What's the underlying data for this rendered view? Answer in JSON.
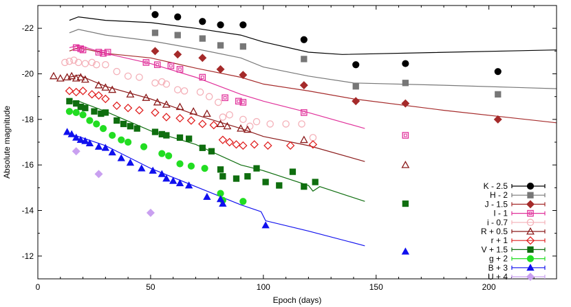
{
  "chart_data": {
    "type": "scatter",
    "xlabel": "Epoch (days)",
    "ylabel": "Absolute magnitude",
    "xlim": [
      0,
      230
    ],
    "ylim": [
      -11,
      -23
    ],
    "y_inverted": true,
    "grid": false,
    "legend_position": "bottom-right",
    "xticks": [
      "0",
      "50",
      "100",
      "150",
      "200"
    ],
    "yticks": [
      "-12",
      "-14",
      "-16",
      "-18",
      "-20",
      "-22"
    ],
    "series": [
      {
        "name": "K - 2.5",
        "color": "#000000",
        "marker": "filled-circle",
        "points": [
          [
            52,
            -22.6
          ],
          [
            62,
            -22.5
          ],
          [
            73,
            -22.3
          ],
          [
            81,
            -22.15
          ],
          [
            91,
            -22.15
          ],
          [
            118,
            -21.5
          ],
          [
            141,
            -20.4
          ],
          [
            163,
            -20.45
          ],
          [
            204,
            -20.1
          ]
        ],
        "model": [
          [
            14,
            -22.35
          ],
          [
            18,
            -22.5
          ],
          [
            30,
            -22.35
          ],
          [
            50,
            -22.25
          ],
          [
            70,
            -22.0
          ],
          [
            90,
            -21.7
          ],
          [
            100,
            -21.4
          ],
          [
            120,
            -20.95
          ],
          [
            135,
            -20.85
          ],
          [
            230,
            -21.05
          ]
        ]
      },
      {
        "name": "H - 2",
        "color": "#777777",
        "marker": "filled-square",
        "points": [
          [
            52,
            -21.8
          ],
          [
            62,
            -21.7
          ],
          [
            73,
            -21.55
          ],
          [
            81,
            -21.25
          ],
          [
            91,
            -21.2
          ],
          [
            118,
            -20.65
          ],
          [
            141,
            -19.45
          ],
          [
            163,
            -19.6
          ],
          [
            204,
            -19.1
          ]
        ],
        "model": [
          [
            14,
            -21.8
          ],
          [
            18,
            -21.95
          ],
          [
            30,
            -21.7
          ],
          [
            50,
            -21.45
          ],
          [
            70,
            -21.1
          ],
          [
            90,
            -20.7
          ],
          [
            100,
            -20.3
          ],
          [
            120,
            -19.9
          ],
          [
            140,
            -19.6
          ],
          [
            180,
            -19.5
          ],
          [
            230,
            -19.35
          ]
        ]
      },
      {
        "name": "J - 1.5",
        "color": "#a52a2a",
        "marker": "filled-diamond",
        "points": [
          [
            52,
            -21.0
          ],
          [
            62,
            -20.85
          ],
          [
            73,
            -20.7
          ],
          [
            81,
            -20.2
          ],
          [
            91,
            -19.95
          ],
          [
            118,
            -19.5
          ],
          [
            141,
            -18.8
          ],
          [
            163,
            -18.7
          ],
          [
            204,
            -18.0
          ]
        ],
        "model": [
          [
            14,
            -21.0
          ],
          [
            18,
            -21.15
          ],
          [
            30,
            -20.9
          ],
          [
            50,
            -20.7
          ],
          [
            70,
            -20.25
          ],
          [
            90,
            -19.85
          ],
          [
            100,
            -19.55
          ],
          [
            120,
            -19.25
          ],
          [
            140,
            -18.9
          ],
          [
            180,
            -18.4
          ],
          [
            230,
            -17.85
          ]
        ]
      },
      {
        "name": "I - 1",
        "color": "#e0309a",
        "marker": "open-square",
        "points": [
          [
            17,
            -21.15
          ],
          [
            19,
            -21.1
          ],
          [
            20,
            -21.05
          ],
          [
            27,
            -20.95
          ],
          [
            29,
            -20.9
          ],
          [
            31,
            -20.95
          ],
          [
            48,
            -20.5
          ],
          [
            53,
            -20.4
          ],
          [
            59,
            -20.35
          ],
          [
            63,
            -20.2
          ],
          [
            73,
            -19.85
          ],
          [
            83,
            -18.95
          ],
          [
            89,
            -18.8
          ],
          [
            91,
            -18.75
          ],
          [
            118,
            -18.3
          ],
          [
            163,
            -17.3
          ]
        ],
        "model": [
          [
            14,
            -21.15
          ],
          [
            18,
            -21.25
          ],
          [
            30,
            -20.9
          ],
          [
            50,
            -20.45
          ],
          [
            70,
            -19.85
          ],
          [
            90,
            -19.1
          ],
          [
            100,
            -18.8
          ],
          [
            120,
            -18.3
          ],
          [
            145,
            -17.6
          ]
        ]
      },
      {
        "name": "i - 0.7",
        "color": "#f4b0b8",
        "marker": "open-circle",
        "points": [
          [
            12,
            -20.5
          ],
          [
            14,
            -20.55
          ],
          [
            16,
            -20.6
          ],
          [
            18,
            -20.5
          ],
          [
            21,
            -20.45
          ],
          [
            24,
            -20.5
          ],
          [
            26,
            -20.4
          ],
          [
            30,
            -20.4
          ],
          [
            35,
            -20.1
          ],
          [
            40,
            -19.9
          ],
          [
            45,
            -19.85
          ],
          [
            52,
            -19.6
          ],
          [
            55,
            -19.65
          ],
          [
            57,
            -19.55
          ],
          [
            62,
            -19.3
          ],
          [
            65,
            -19.25
          ],
          [
            72,
            -19.2
          ],
          [
            76,
            -19.0
          ],
          [
            80,
            -18.75
          ],
          [
            82,
            -18.1
          ],
          [
            85,
            -18.2
          ],
          [
            91,
            -18.0
          ],
          [
            94,
            -17.7
          ],
          [
            97,
            -17.9
          ],
          [
            103,
            -17.8
          ],
          [
            110,
            -17.8
          ],
          [
            117,
            -17.8
          ],
          [
            122,
            -17.2
          ]
        ],
        "model": []
      },
      {
        "name": "R + 0.5",
        "color": "#8b1a1a",
        "marker": "open-triangle",
        "points": [
          [
            7,
            -19.9
          ],
          [
            10,
            -19.8
          ],
          [
            13,
            -19.85
          ],
          [
            15,
            -19.9
          ],
          [
            17,
            -19.8
          ],
          [
            19,
            -19.85
          ],
          [
            21,
            -19.75
          ],
          [
            27,
            -19.5
          ],
          [
            30,
            -19.4
          ],
          [
            33,
            -19.3
          ],
          [
            41,
            -19.1
          ],
          [
            48,
            -18.95
          ],
          [
            53,
            -18.75
          ],
          [
            57,
            -18.65
          ],
          [
            63,
            -18.55
          ],
          [
            69,
            -18.35
          ],
          [
            75,
            -18.25
          ],
          [
            81,
            -17.8
          ],
          [
            84,
            -17.7
          ],
          [
            90,
            -17.6
          ],
          [
            93,
            -17.55
          ],
          [
            118,
            -17.1
          ],
          [
            163,
            -16.0
          ]
        ],
        "model": [
          [
            14,
            -19.85
          ],
          [
            18,
            -19.95
          ],
          [
            30,
            -19.45
          ],
          [
            50,
            -18.9
          ],
          [
            70,
            -18.2
          ],
          [
            90,
            -17.6
          ],
          [
            100,
            -17.25
          ],
          [
            120,
            -16.85
          ],
          [
            145,
            -16.15
          ]
        ]
      },
      {
        "name": "r + 1",
        "color": "#e02020",
        "marker": "open-diamond",
        "points": [
          [
            14,
            -19.25
          ],
          [
            17,
            -19.2
          ],
          [
            20,
            -19.25
          ],
          [
            24,
            -19.1
          ],
          [
            27,
            -19.05
          ],
          [
            30,
            -18.9
          ],
          [
            35,
            -18.6
          ],
          [
            40,
            -18.5
          ],
          [
            45,
            -18.4
          ],
          [
            52,
            -18.3
          ],
          [
            57,
            -18.1
          ],
          [
            63,
            -18.05
          ],
          [
            68,
            -17.95
          ],
          [
            73,
            -17.8
          ],
          [
            78,
            -17.75
          ],
          [
            82,
            -17.1
          ],
          [
            85,
            -17.0
          ],
          [
            88,
            -16.9
          ],
          [
            91,
            -16.85
          ],
          [
            96,
            -16.9
          ],
          [
            102,
            -16.85
          ],
          [
            112,
            -16.85
          ],
          [
            122,
            -16.9
          ]
        ],
        "model": []
      },
      {
        "name": "V + 1.5",
        "color": "#0f6e0f",
        "marker": "filled-square",
        "points": [
          [
            14,
            -18.8
          ],
          [
            17,
            -18.7
          ],
          [
            19,
            -18.55
          ],
          [
            21,
            -18.5
          ],
          [
            25,
            -18.35
          ],
          [
            28,
            -18.25
          ],
          [
            30,
            -18.3
          ],
          [
            35,
            -17.95
          ],
          [
            38,
            -17.8
          ],
          [
            41,
            -17.7
          ],
          [
            44,
            -17.6
          ],
          [
            52,
            -17.45
          ],
          [
            55,
            -17.35
          ],
          [
            57,
            -17.3
          ],
          [
            63,
            -17.2
          ],
          [
            67,
            -17.15
          ],
          [
            73,
            -16.75
          ],
          [
            77,
            -16.6
          ],
          [
            81,
            -15.8
          ],
          [
            82,
            -15.5
          ],
          [
            88,
            -15.4
          ],
          [
            93,
            -15.5
          ],
          [
            97,
            -15.85
          ],
          [
            101,
            -15.25
          ],
          [
            107,
            -15.1
          ],
          [
            113,
            -15.7
          ],
          [
            118,
            -15.05
          ],
          [
            123,
            -15.25
          ],
          [
            163,
            -14.3
          ]
        ],
        "model": [
          [
            14,
            -18.75
          ],
          [
            18,
            -18.8
          ],
          [
            30,
            -18.35
          ],
          [
            50,
            -17.5
          ],
          [
            70,
            -16.9
          ],
          [
            90,
            -16.0
          ],
          [
            100,
            -15.75
          ],
          [
            120,
            -15.1
          ],
          [
            122,
            -14.85
          ],
          [
            125,
            -15.05
          ],
          [
            145,
            -14.4
          ]
        ]
      },
      {
        "name": "g + 2",
        "color": "#22dd22",
        "marker": "filled-circle",
        "points": [
          [
            14,
            -18.35
          ],
          [
            17,
            -18.3
          ],
          [
            20,
            -18.2
          ],
          [
            23,
            -17.95
          ],
          [
            26,
            -17.8
          ],
          [
            29,
            -17.6
          ],
          [
            33,
            -17.3
          ],
          [
            37,
            -17.1
          ],
          [
            40,
            -17.0
          ],
          [
            47,
            -16.8
          ],
          [
            55,
            -16.5
          ],
          [
            58,
            -16.4
          ],
          [
            63,
            -16.05
          ],
          [
            68,
            -15.95
          ],
          [
            74,
            -15.85
          ],
          [
            81,
            -14.75
          ],
          [
            82,
            -14.45
          ],
          [
            91,
            -14.4
          ]
        ],
        "model": []
      },
      {
        "name": "B + 3",
        "color": "#1010ee",
        "marker": "filled-triangle",
        "points": [
          [
            13,
            -17.45
          ],
          [
            15,
            -17.35
          ],
          [
            17,
            -17.2
          ],
          [
            19,
            -17.1
          ],
          [
            21,
            -17.05
          ],
          [
            23,
            -16.95
          ],
          [
            27,
            -16.8
          ],
          [
            30,
            -16.75
          ],
          [
            33,
            -16.55
          ],
          [
            37,
            -16.3
          ],
          [
            41,
            -16.1
          ],
          [
            46,
            -15.85
          ],
          [
            51,
            -15.75
          ],
          [
            55,
            -15.6
          ],
          [
            57,
            -15.4
          ],
          [
            60,
            -15.3
          ],
          [
            63,
            -15.2
          ],
          [
            67,
            -15.1
          ],
          [
            75,
            -14.6
          ],
          [
            81,
            -14.5
          ],
          [
            82,
            -14.3
          ],
          [
            101,
            -13.35
          ],
          [
            163,
            -12.2
          ]
        ],
        "model": [
          [
            14,
            -17.35
          ],
          [
            18,
            -17.25
          ],
          [
            30,
            -16.85
          ],
          [
            50,
            -15.85
          ],
          [
            70,
            -15.05
          ],
          [
            90,
            -14.25
          ],
          [
            99,
            -13.95
          ],
          [
            101,
            -13.55
          ],
          [
            120,
            -13.1
          ],
          [
            145,
            -12.45
          ]
        ]
      },
      {
        "name": "U + 4",
        "color": "#c9a0f0",
        "marker": "filled-diamond",
        "points": [
          [
            17,
            -16.6
          ],
          [
            27,
            -15.6
          ],
          [
            50,
            -13.9
          ]
        ],
        "model": []
      }
    ]
  }
}
